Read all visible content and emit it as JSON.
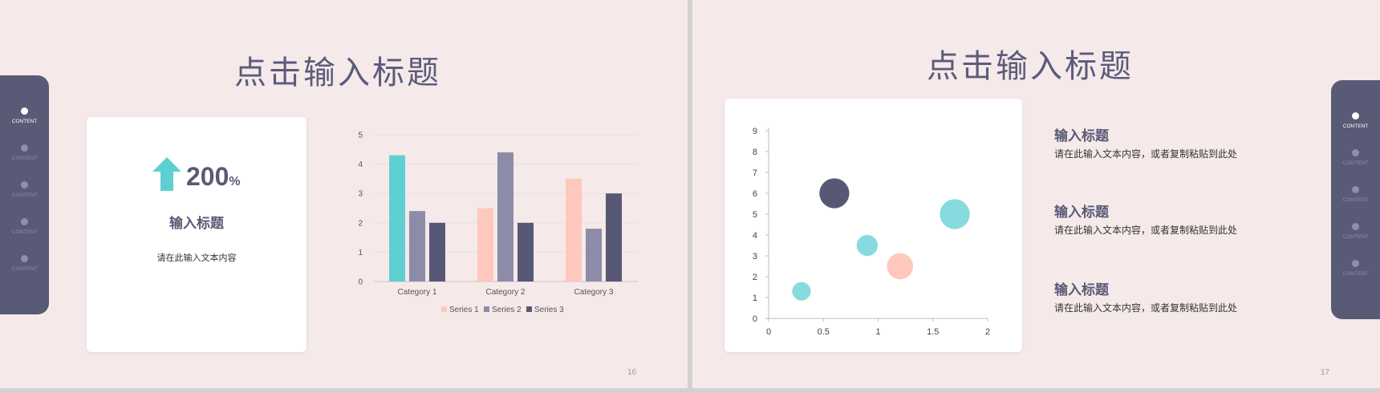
{
  "slide16": {
    "title": "点击输入标题",
    "page_number": "16",
    "nav": [
      "CONTENT",
      "CONTENT",
      "CONTENT",
      "CONTENT",
      "CONTENT"
    ],
    "nav_active_index": 0,
    "stat": {
      "value": "200",
      "unit": "%",
      "icon": "arrow-up-icon"
    },
    "card_heading": "输入标题",
    "card_text": "请在此输入文本内容"
  },
  "slide17": {
    "title": "点击输入标题",
    "page_number": "17",
    "nav": [
      "CONTENT",
      "CONTENT",
      "CONTENT",
      "CONTENT",
      "CONTENT"
    ],
    "nav_active_index": 0,
    "text_blocks": [
      {
        "title": "输入标题",
        "body": "请在此输入文本内容，或者复制粘贴到此处"
      },
      {
        "title": "输入标题",
        "body": "请在此输入文本内容，或者复制粘贴到此处"
      },
      {
        "title": "输入标题",
        "body": "请在此输入文本内容，或者复制粘贴到此处"
      }
    ]
  },
  "colors": {
    "slide_bg": "#f6e9ea",
    "nav_bg": "#595a75",
    "teal": "#5ed0d4",
    "pink": "#ffc8bd",
    "lavender": "#8c8ca8",
    "navy": "#575875",
    "title": "#5b5b7b"
  },
  "chart_data": [
    {
      "type": "bar",
      "categories": [
        "Category 1",
        "Category 2",
        "Category 3"
      ],
      "series": [
        {
          "name": "Series 1",
          "values": [
            4.3,
            2.5,
            3.5
          ]
        },
        {
          "name": "Series 2",
          "values": [
            2.4,
            4.4,
            1.8
          ]
        },
        {
          "name": "Series 3",
          "values": [
            2,
            2,
            3
          ]
        }
      ],
      "ylim": [
        0,
        5
      ],
      "yticks": [
        "0",
        "1",
        "2",
        "3",
        "4",
        "5"
      ],
      "grid": true,
      "legend": "bottom"
    },
    {
      "type": "scatter",
      "subtype": "bubble",
      "points": [
        {
          "x": 0.3,
          "y": 1.3,
          "size": 1,
          "color": "#85dbdd"
        },
        {
          "x": 0.6,
          "y": 6,
          "size": 2.6,
          "color": "#575875"
        },
        {
          "x": 0.9,
          "y": 3.5,
          "size": 1.3,
          "color": "#85dbdd"
        },
        {
          "x": 1.2,
          "y": 2.5,
          "size": 2,
          "color": "#ffc8bd"
        },
        {
          "x": 1.7,
          "y": 5,
          "size": 2.6,
          "color": "#85dbdd"
        }
      ],
      "xlim": [
        0,
        2
      ],
      "ylim": [
        0,
        9
      ],
      "xticks": [
        "0",
        "0.5",
        "1",
        "1.5",
        "2"
      ],
      "yticks": [
        "0",
        "1",
        "2",
        "3",
        "4",
        "5",
        "6",
        "7",
        "8",
        "9"
      ],
      "grid": false
    }
  ]
}
